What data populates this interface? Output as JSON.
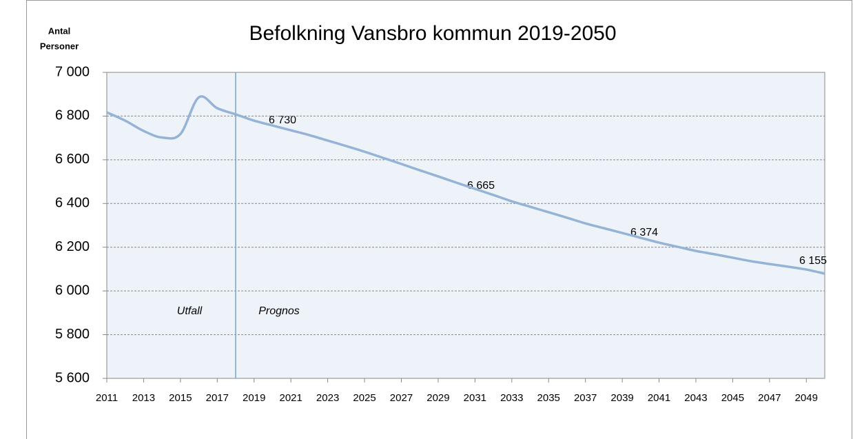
{
  "chart_data": {
    "type": "line",
    "title": "Befolkning Vansbro kommun 2019-2050",
    "y_label": [
      "Antal",
      "Personer"
    ],
    "x": [
      2011,
      2012,
      2013,
      2014,
      2015,
      2016,
      2017,
      2018,
      2019,
      2020,
      2021,
      2022,
      2023,
      2024,
      2025,
      2026,
      2027,
      2028,
      2029,
      2030,
      2031,
      2032,
      2033,
      2034,
      2035,
      2036,
      2037,
      2038,
      2039,
      2040,
      2041,
      2042,
      2043,
      2044,
      2045,
      2046,
      2047,
      2048,
      2049,
      2050
    ],
    "series": [
      {
        "color": "#95b3d7",
        "values": [
          6817,
          6779,
          6732,
          6702,
          6718,
          6886,
          6836,
          6808,
          6779,
          6757,
          6735,
          6713,
          6688,
          6663,
          6637,
          6609,
          6581,
          6552,
          6524,
          6495,
          6467,
          6439,
          6410,
          6385,
          6360,
          6335,
          6309,
          6287,
          6265,
          6243,
          6221,
          6202,
          6183,
          6168,
          6152,
          6136,
          6123,
          6111,
          6098,
          6079
        ]
      }
    ],
    "xlim": [
      2011,
      2050
    ],
    "xticks": [
      2011,
      2013,
      2015,
      2017,
      2019,
      2021,
      2023,
      2025,
      2027,
      2029,
      2031,
      2033,
      2035,
      2037,
      2039,
      2041,
      2043,
      2045,
      2047,
      2049
    ],
    "ylim": [
      5600,
      7000
    ],
    "yticks": [
      {
        "value": 5600,
        "label": "5 600"
      },
      {
        "value": 5800,
        "label": "5 800"
      },
      {
        "value": 6000,
        "label": "6 000"
      },
      {
        "value": 6200,
        "label": "6 200"
      },
      {
        "value": 6400,
        "label": "6 400"
      },
      {
        "value": 6600,
        "label": "6 600"
      },
      {
        "value": 6800,
        "label": "6 800"
      },
      {
        "value": 7000,
        "label": "7 000"
      }
    ],
    "grid": true,
    "divider_x": 2018,
    "region_labels": [
      "Utfall",
      "Prognos"
    ],
    "annotations": [
      "6 730",
      "6 665",
      "6 374",
      "6 155"
    ]
  }
}
